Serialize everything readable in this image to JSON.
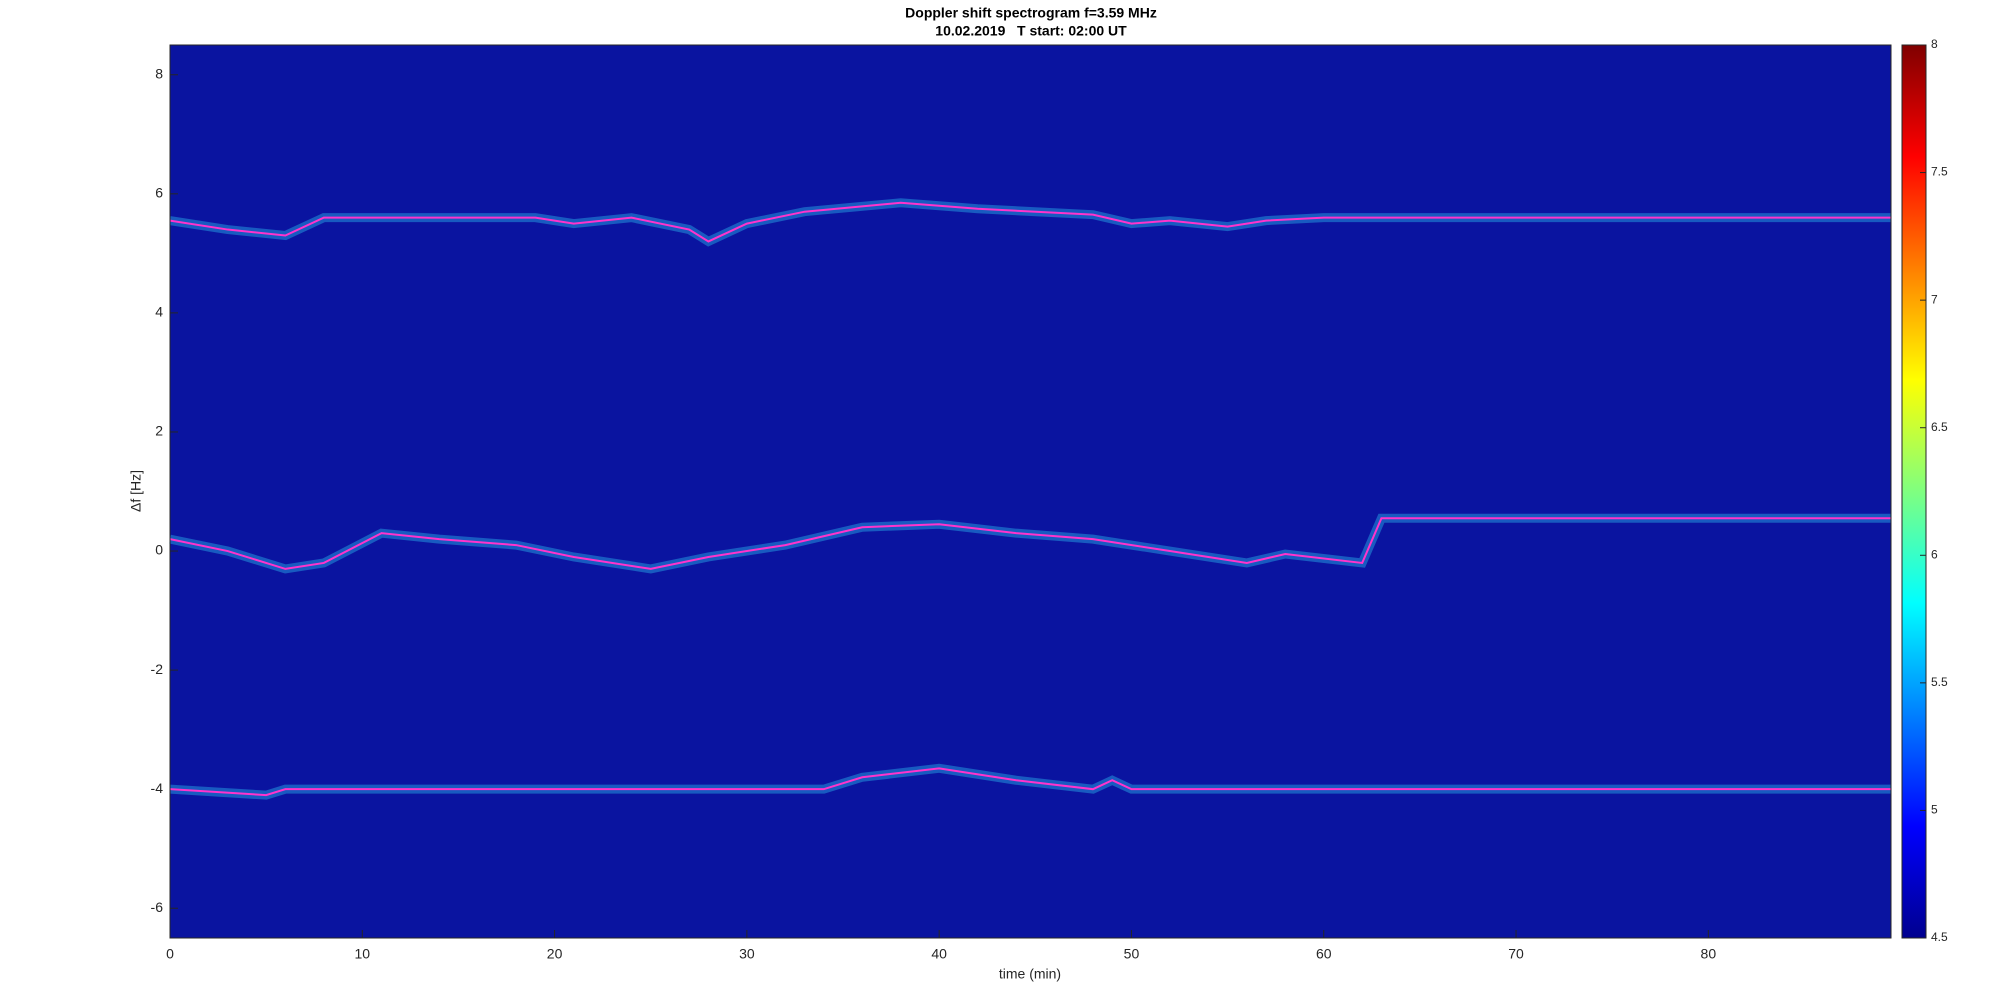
{
  "chart_data": {
    "type": "line",
    "title": "Doppler shift spectrogram f=3.59 MHz",
    "subtitle": "10.02.2019   T start: 02:00 UT",
    "x_label": "time (min)",
    "y_label": "Δf [Hz]",
    "xlim": [
      0,
      89.5
    ],
    "xticks": [
      0,
      10,
      20,
      30,
      40,
      50,
      60,
      70,
      80
    ],
    "ylim": [
      -6.5,
      8.5
    ],
    "yticks": [
      -6,
      -4,
      -2,
      0,
      2,
      4,
      6,
      8
    ],
    "background": "#0a14a0",
    "colorbar": {
      "lim": [
        4.5,
        8
      ],
      "ticks": [
        4.5,
        5,
        5.5,
        6,
        6.5,
        7,
        7.5,
        8
      ]
    },
    "series": [
      {
        "color": "#ff33cc",
        "x": [
          0,
          3,
          6,
          8,
          15,
          19,
          21,
          24,
          27,
          28,
          30,
          33,
          38,
          42,
          48,
          50,
          52,
          55,
          57,
          60,
          89.5
        ],
        "values": [
          5.55,
          5.4,
          5.3,
          5.6,
          5.6,
          5.6,
          5.5,
          5.6,
          5.4,
          5.2,
          5.5,
          5.7,
          5.85,
          5.75,
          5.65,
          5.5,
          5.55,
          5.45,
          5.55,
          5.6,
          5.6
        ]
      },
      {
        "color": "#ff33cc",
        "x": [
          0,
          3,
          6,
          8,
          11,
          14,
          18,
          21,
          25,
          28,
          32,
          36,
          40,
          44,
          48,
          52,
          56,
          58,
          62,
          63,
          89.5
        ],
        "values": [
          0.2,
          0,
          -0.3,
          -0.2,
          0.3,
          0.2,
          0.1,
          -0.1,
          -0.3,
          -0.1,
          0.1,
          0.4,
          0.45,
          0.3,
          0.2,
          0,
          -0.2,
          -0.05,
          -0.2,
          0.55,
          0.55
        ]
      },
      {
        "color": "#ff33cc",
        "x": [
          0,
          5,
          6,
          34,
          36,
          40,
          44,
          48,
          49,
          50,
          89.5
        ],
        "values": [
          -4,
          -4.1,
          -4,
          -4,
          -3.8,
          -3.65,
          -3.85,
          -4,
          -3.85,
          -4,
          -4
        ]
      }
    ]
  }
}
